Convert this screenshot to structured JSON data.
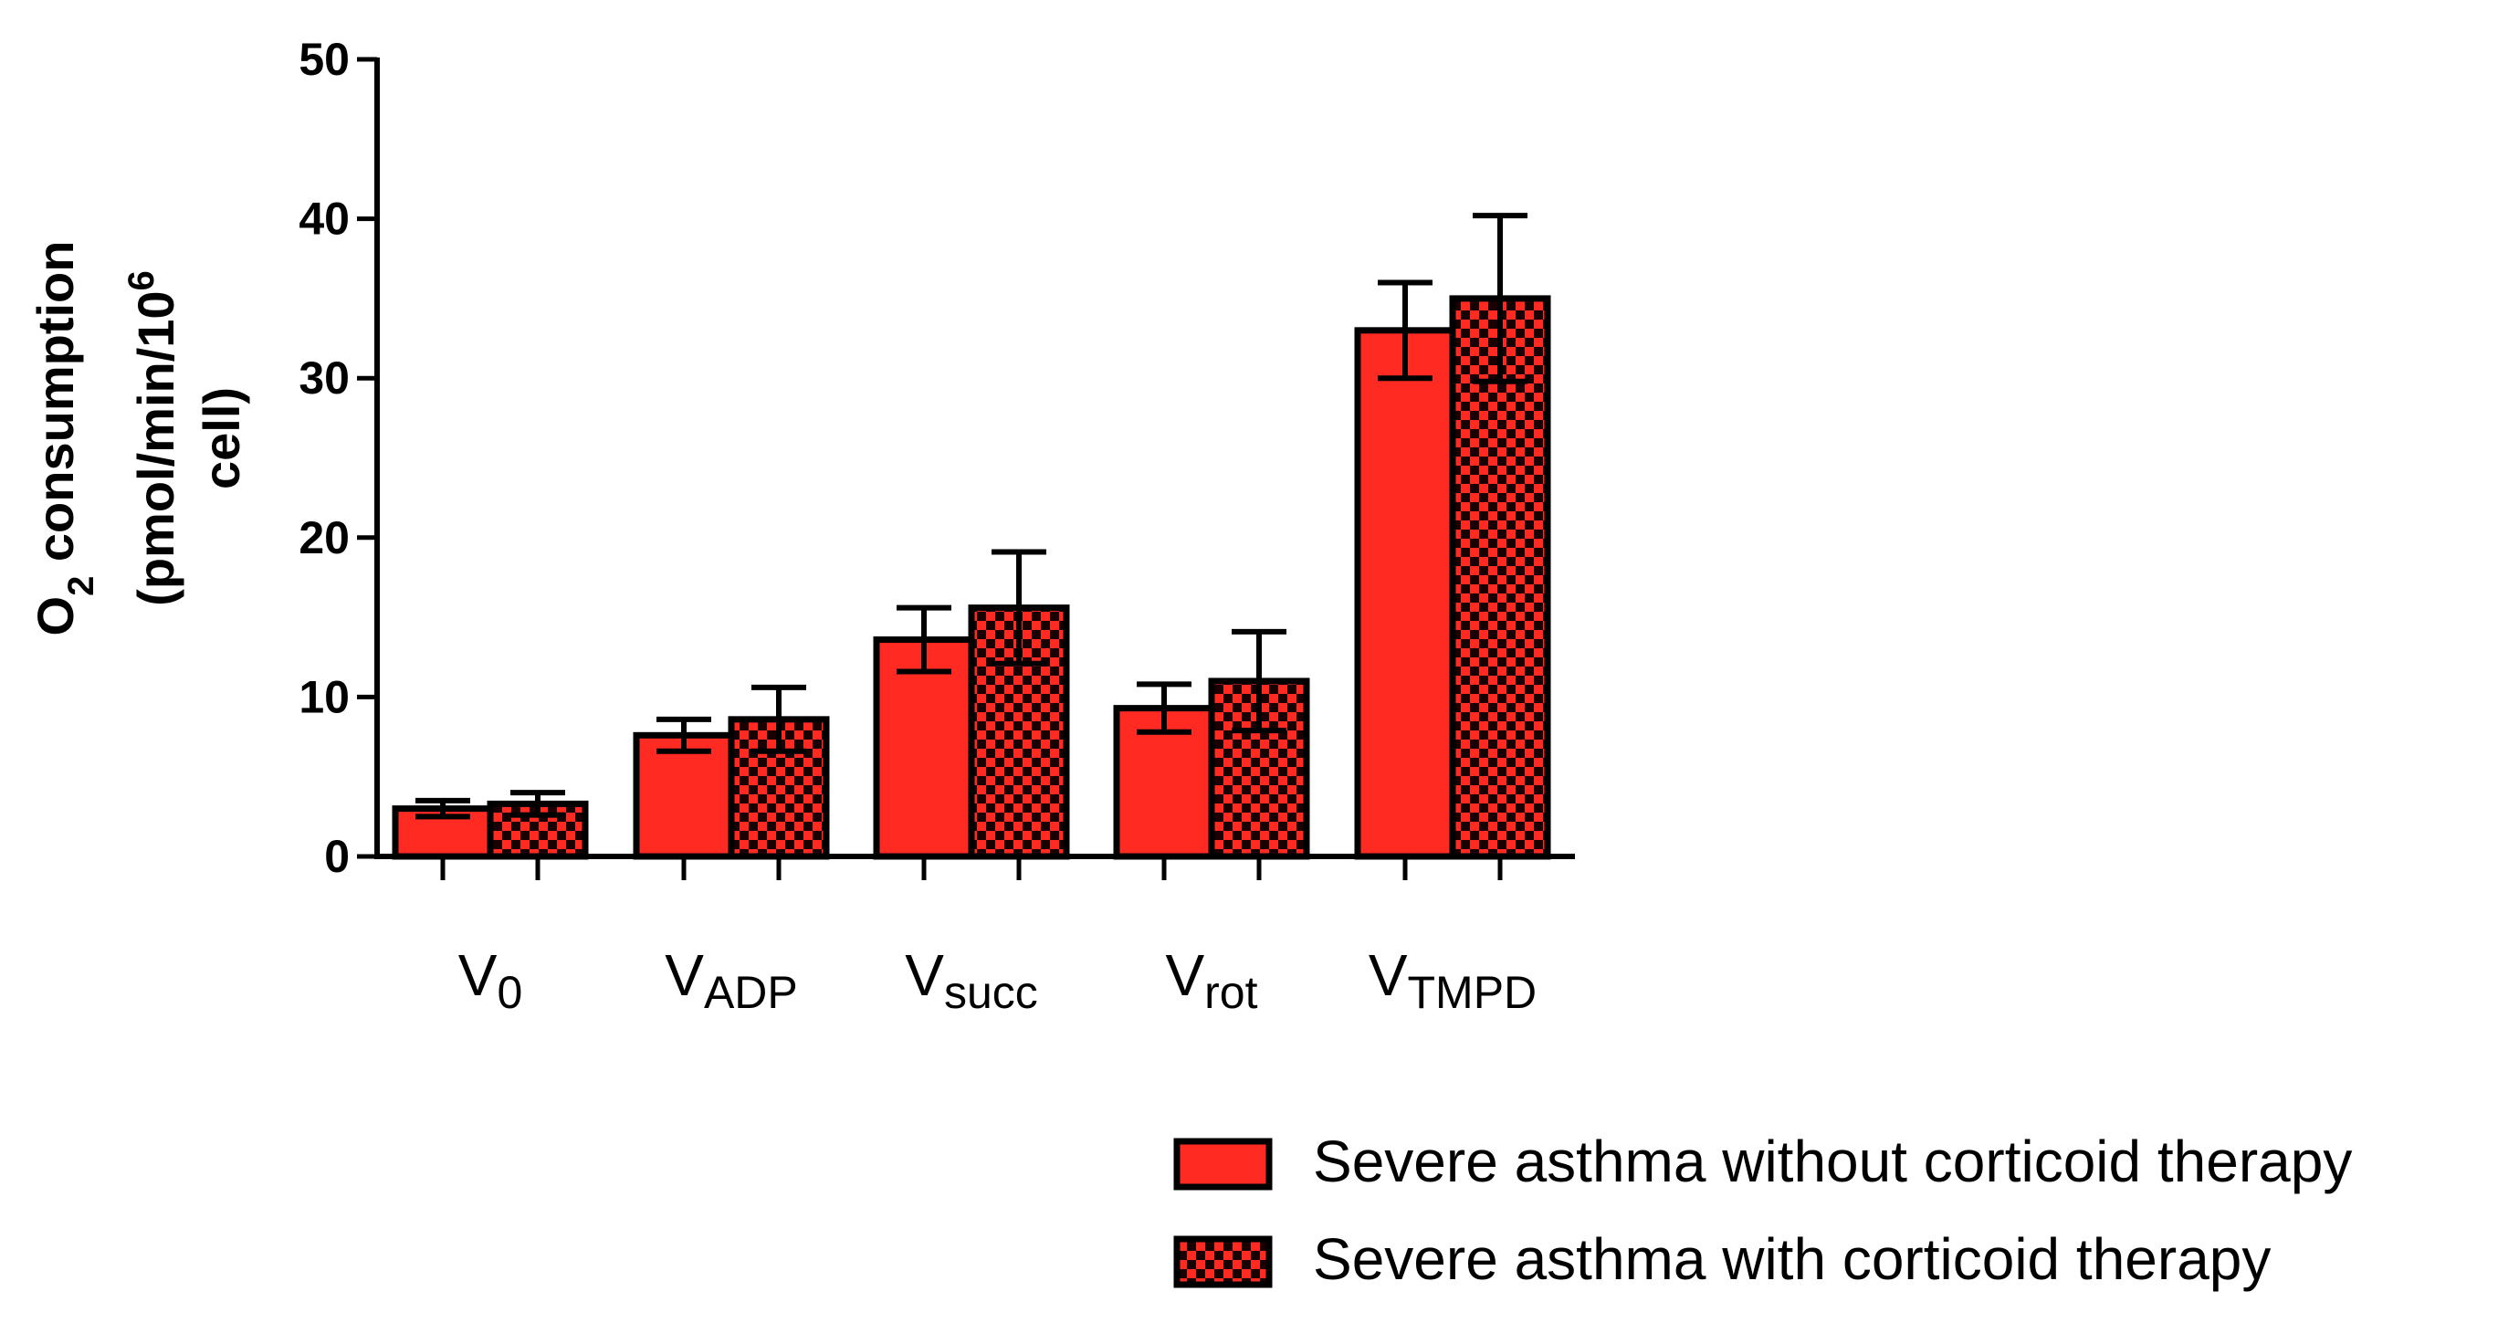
{
  "chart_data": {
    "type": "bar",
    "ylabel": {
      "line1_pre": "O",
      "line1_sub": "2",
      "line1_post": " consumption",
      "line2_pre": "(pmol/min/10",
      "line2_sup": "6",
      "line3": "cell)"
    },
    "ylim": [
      0,
      50
    ],
    "yticks": [
      0,
      10,
      20,
      30,
      40,
      50
    ],
    "categories": [
      {
        "main": "V",
        "sub": "0"
      },
      {
        "main": "V",
        "sub": "ADP"
      },
      {
        "main": "V",
        "sub": "succ"
      },
      {
        "main": "V",
        "sub": "rot"
      },
      {
        "main": "V",
        "sub": "TMPD"
      }
    ],
    "series": [
      {
        "name": "Severe asthma without corticoid therapy",
        "pattern": "solid",
        "values": [
          3.0,
          7.6,
          13.6,
          9.3,
          33.0
        ],
        "errors": [
          0.5,
          1.0,
          2.0,
          1.5,
          3.0
        ]
      },
      {
        "name": "Severe asthma with corticoid therapy",
        "pattern": "checkered",
        "values": [
          3.3,
          8.6,
          15.6,
          11.0,
          35.0
        ],
        "errors": [
          0.7,
          2.0,
          3.5,
          3.1,
          5.2
        ]
      }
    ],
    "colors": {
      "bar": "#ff2a22",
      "check": "#1a0000",
      "outline": "#000000"
    },
    "grid": false,
    "legend_position": "bottom-right"
  }
}
